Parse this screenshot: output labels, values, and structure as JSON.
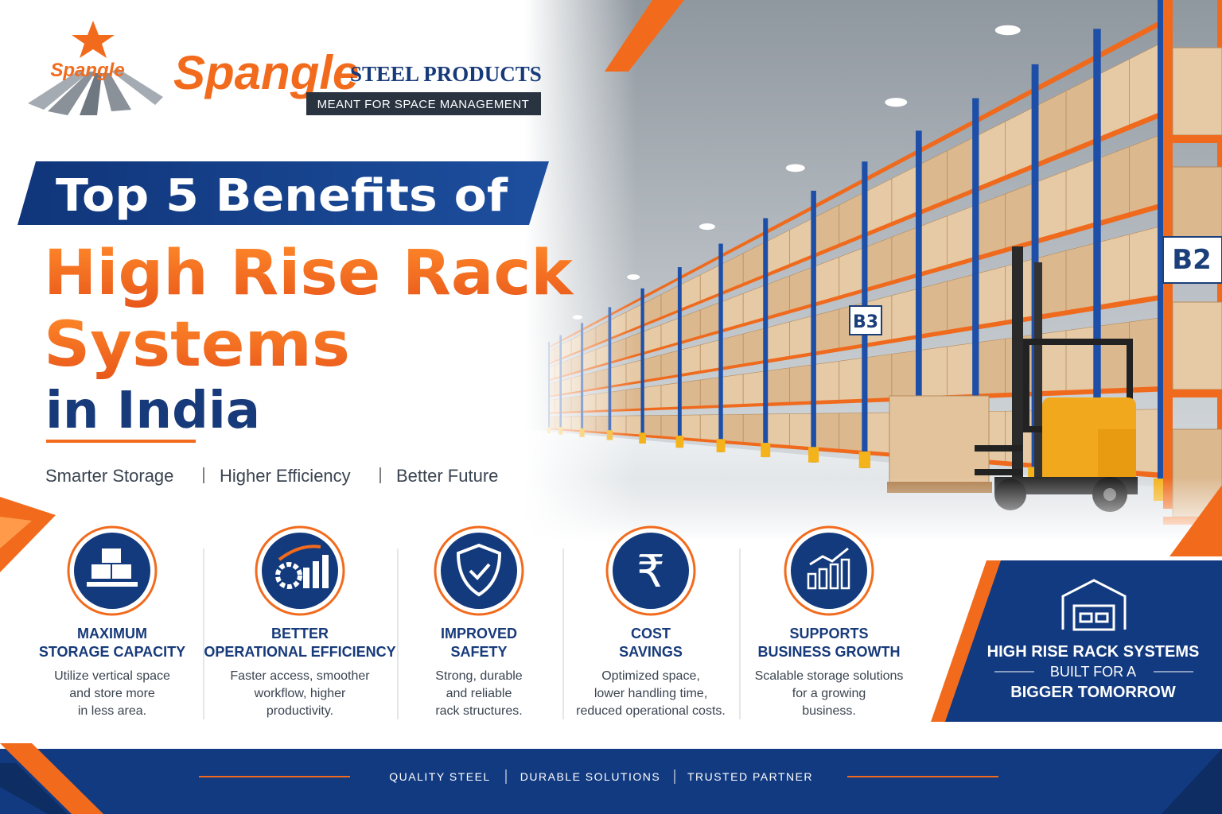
{
  "logo": {
    "emblem_text": "Spangle",
    "brand": "Spangle",
    "company": "STEEL PRODUCTS",
    "slogan": "MEANT FOR SPACE MANAGEMENT"
  },
  "headline": {
    "banner": "Top 5 Benefits of",
    "lines": [
      "High Rise Rack",
      "Systems"
    ],
    "location": "in India"
  },
  "taglines": [
    "Smarter Storage",
    "Higher Efficiency",
    "Better Future"
  ],
  "photo": {
    "rack_labels": [
      "B3",
      "B2"
    ]
  },
  "benefits": [
    {
      "title": [
        "MAXIMUM",
        "STORAGE CAPACITY"
      ],
      "description": [
        "Utilize vertical space",
        "and store more",
        "in less area."
      ]
    },
    {
      "title": [
        "BETTER",
        "OPERATIONAL EFFICIENCY"
      ],
      "description": [
        "Faster access, smoother",
        "workflow, higher",
        "productivity."
      ]
    },
    {
      "title": [
        "IMPROVED",
        "SAFETY"
      ],
      "description": [
        "Strong, durable",
        "and reliable",
        "rack structures."
      ]
    },
    {
      "title": [
        "COST",
        "SAVINGS"
      ],
      "symbol": "₹",
      "description": [
        "Optimized space,",
        "lower handling time,",
        "reduced operational costs."
      ]
    },
    {
      "title": [
        "SUPPORTS",
        "BUSINESS GROWTH"
      ],
      "description": [
        "Scalable storage solutions",
        "for a growing",
        "business."
      ]
    }
  ],
  "callout": {
    "lines": [
      "HIGH RISE RACK SYSTEMS",
      "BUILT FOR A",
      "BIGGER TOMORROW"
    ]
  },
  "footer": {
    "items": [
      "QUALITY STEEL",
      "DURABLE SOLUTIONS",
      "TRUSTED PARTNER"
    ]
  }
}
